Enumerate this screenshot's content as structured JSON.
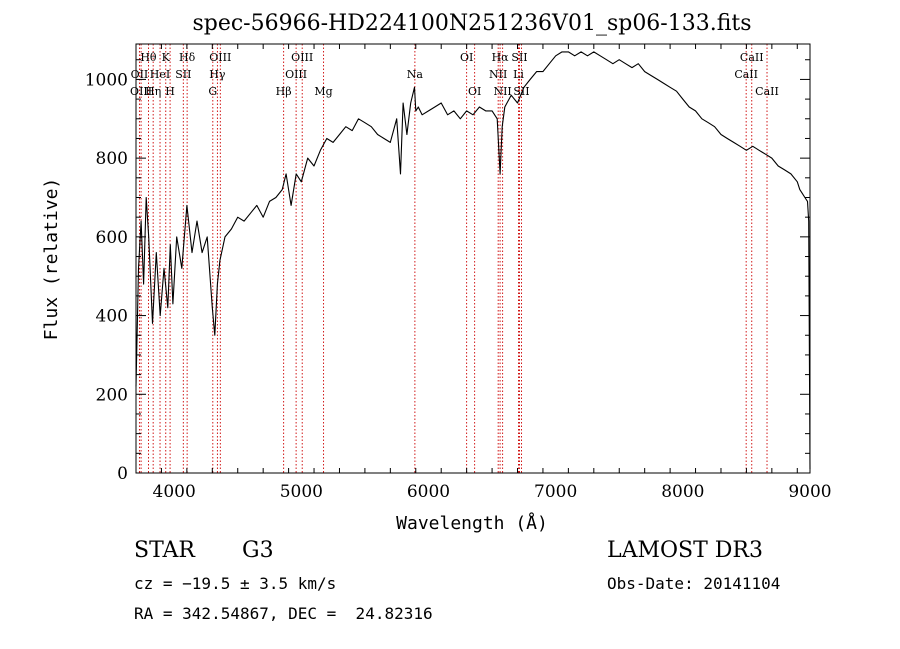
{
  "chart_data": {
    "type": "line",
    "title": "spec-56966-HD224100N251236V01_sp06-133.fits",
    "xlabel": "Wavelength (Å)",
    "ylabel": "Flux (relative)",
    "xlim": [
      3700,
      9000
    ],
    "ylim": [
      0,
      1090
    ],
    "xticks": [
      4000,
      5000,
      6000,
      7000,
      8000,
      9000
    ],
    "yticks": [
      0,
      200,
      400,
      600,
      800,
      1000
    ],
    "minor_x_step": 200,
    "minor_y_step": 50,
    "grid": false,
    "line_color": "#000000",
    "marker_color": "#cc0000",
    "series": [
      {
        "x": [
          3700,
          3720,
          3740,
          3760,
          3780,
          3800,
          3830,
          3860,
          3890,
          3920,
          3950,
          3970,
          3990,
          4020,
          4060,
          4100,
          4140,
          4180,
          4220,
          4260,
          4300,
          4320,
          4340,
          4360,
          4400,
          4450,
          4500,
          4550,
          4600,
          4650,
          4700,
          4750,
          4800,
          4850,
          4880,
          4920,
          4960,
          5000,
          5050,
          5100,
          5150,
          5200,
          5250,
          5300,
          5350,
          5400,
          5450,
          5500,
          5550,
          5600,
          5650,
          5700,
          5750,
          5780,
          5800,
          5830,
          5860,
          5890,
          5900,
          5920,
          5950,
          6000,
          6050,
          6100,
          6150,
          6200,
          6250,
          6300,
          6350,
          6400,
          6450,
          6500,
          6540,
          6563,
          6580,
          6600,
          6650,
          6700,
          6750,
          6800,
          6850,
          6900,
          6950,
          7000,
          7050,
          7100,
          7150,
          7200,
          7250,
          7300,
          7350,
          7400,
          7450,
          7500,
          7550,
          7600,
          7650,
          7700,
          7750,
          7800,
          7850,
          7900,
          7950,
          8000,
          8050,
          8100,
          8150,
          8200,
          8250,
          8300,
          8350,
          8400,
          8450,
          8500,
          8550,
          8600,
          8650,
          8700,
          8750,
          8800,
          8850,
          8900,
          8920,
          8940,
          8960,
          8980,
          8990,
          9000
        ],
        "y": [
          220,
          520,
          640,
          480,
          700,
          600,
          380,
          560,
          400,
          520,
          420,
          580,
          430,
          600,
          520,
          680,
          560,
          640,
          560,
          600,
          420,
          350,
          480,
          540,
          600,
          620,
          650,
          640,
          660,
          680,
          650,
          690,
          700,
          720,
          760,
          680,
          760,
          740,
          800,
          780,
          820,
          850,
          840,
          860,
          880,
          870,
          900,
          890,
          880,
          860,
          850,
          840,
          900,
          760,
          940,
          860,
          940,
          980,
          920,
          930,
          910,
          920,
          930,
          940,
          910,
          920,
          900,
          920,
          910,
          930,
          920,
          920,
          900,
          760,
          880,
          930,
          960,
          940,
          980,
          1000,
          1020,
          1020,
          1040,
          1060,
          1070,
          1070,
          1060,
          1070,
          1060,
          1070,
          1060,
          1050,
          1040,
          1050,
          1040,
          1030,
          1040,
          1020,
          1010,
          1000,
          990,
          980,
          970,
          950,
          930,
          920,
          900,
          890,
          880,
          860,
          850,
          840,
          830,
          820,
          830,
          820,
          810,
          800,
          780,
          770,
          760,
          740,
          720,
          710,
          700,
          690,
          640,
          10
        ]
      }
    ],
    "lines": [
      {
        "label": "Hθ",
        "x": 3798,
        "row": 0
      },
      {
        "label": "OII",
        "x": 3727,
        "row": 1
      },
      {
        "label": "OIII",
        "x": 3740,
        "row": 2
      },
      {
        "label": "K",
        "x": 3934,
        "row": 0
      },
      {
        "label": "HeI",
        "x": 3889,
        "row": 1
      },
      {
        "label": "Hη",
        "x": 3835,
        "row": 2
      },
      {
        "label": "SII",
        "x": 4072,
        "row": 1
      },
      {
        "label": "H",
        "x": 3968,
        "row": 2
      },
      {
        "label": "Hδ",
        "x": 4102,
        "row": 0
      },
      {
        "label": "OIII",
        "x": 4363,
        "row": 0
      },
      {
        "label": "Hγ",
        "x": 4340,
        "row": 1
      },
      {
        "label": "G",
        "x": 4304,
        "row": 2
      },
      {
        "label": "Hβ",
        "x": 4861,
        "row": 2
      },
      {
        "label": "OIII",
        "x": 5007,
        "row": 0
      },
      {
        "label": "OIII",
        "x": 4959,
        "row": 1
      },
      {
        "label": "Mg",
        "x": 5175,
        "row": 2
      },
      {
        "label": "Na",
        "x": 5893,
        "row": 1
      },
      {
        "label": "OI",
        "x": 6300,
        "row": 0
      },
      {
        "label": "OI",
        "x": 6363,
        "row": 2
      },
      {
        "label": "Hα",
        "x": 6563,
        "row": 0
      },
      {
        "label": "SII",
        "x": 6716,
        "row": 0
      },
      {
        "label": "NII",
        "x": 6548,
        "row": 1
      },
      {
        "label": "Li",
        "x": 6708,
        "row": 1
      },
      {
        "label": "NII",
        "x": 6583,
        "row": 2
      },
      {
        "label": "SII",
        "x": 6731,
        "row": 2
      },
      {
        "label": "CaII",
        "x": 8542,
        "row": 0
      },
      {
        "label": "CaII",
        "x": 8498,
        "row": 1
      },
      {
        "label": "CaII",
        "x": 8662,
        "row": 2
      }
    ]
  },
  "info": {
    "object_class": "STAR",
    "subclass": "G3",
    "survey": "LAMOST DR3",
    "redshift": "cz = −19.5 ± 3.5 km/s",
    "obs_date": "Obs-Date: 20141104",
    "coords": "RA = 342.54867, DEC =  24.82316"
  }
}
